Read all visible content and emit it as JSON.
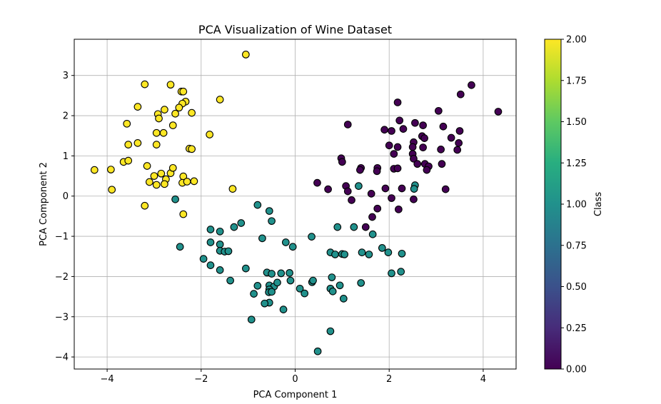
{
  "chart_data": {
    "type": "scatter",
    "title": "PCA Visualization of Wine Dataset",
    "xlabel": "PCA Component 1",
    "ylabel": "PCA Component 2",
    "xlim": [
      -4.7,
      4.7
    ],
    "ylim": [
      -4.3,
      3.9
    ],
    "xticks": [
      -4,
      -2,
      0,
      2,
      4
    ],
    "xtick_labels": [
      "−4",
      "−2",
      "0",
      "2",
      "4"
    ],
    "yticks": [
      -4,
      -3,
      -2,
      -1,
      0,
      1,
      2,
      3
    ],
    "ytick_labels": [
      "−4",
      "−3",
      "−2",
      "−1",
      "0",
      "1",
      "2",
      "3"
    ],
    "grid": true,
    "marker_edge_color": "#000000",
    "colorbar": {
      "label": "Class",
      "colormap": "viridis",
      "range": [
        0,
        2
      ],
      "ticks": [
        0,
        0.25,
        0.5,
        0.75,
        1,
        1.25,
        1.5,
        1.75,
        2
      ],
      "tick_labels": [
        "0.00",
        "0.25",
        "0.50",
        "0.75",
        "1.00",
        "1.25",
        "1.50",
        "1.75",
        "2.00"
      ]
    },
    "class_colors": {
      "0": "#440154",
      "1": "#21918c",
      "2": "#fde725"
    },
    "series": [
      {
        "class": 0,
        "points": [
          [
            3.75,
            2.76
          ],
          [
            4.32,
            2.1
          ],
          [
            3.52,
            2.53
          ],
          [
            3.05,
            2.12
          ],
          [
            2.18,
            2.33
          ],
          [
            1.12,
            1.78
          ],
          [
            2.55,
            1.82
          ],
          [
            2.72,
            1.76
          ],
          [
            2.22,
            1.88
          ],
          [
            2.3,
            1.67
          ],
          [
            1.9,
            1.65
          ],
          [
            2.05,
            1.62
          ],
          [
            2.7,
            1.49
          ],
          [
            2.75,
            1.44
          ],
          [
            3.15,
            1.73
          ],
          [
            3.5,
            1.62
          ],
          [
            3.32,
            1.45
          ],
          [
            3.48,
            1.32
          ],
          [
            3.45,
            1.15
          ],
          [
            3.1,
            1.16
          ],
          [
            2.0,
            1.26
          ],
          [
            2.18,
            1.22
          ],
          [
            2.52,
            1.34
          ],
          [
            2.5,
            1.22
          ],
          [
            2.72,
            1.21
          ],
          [
            2.1,
            1.05
          ],
          [
            2.5,
            1.05
          ],
          [
            2.52,
            0.93
          ],
          [
            2.6,
            0.8
          ],
          [
            2.76,
            0.8
          ],
          [
            2.84,
            0.74
          ],
          [
            2.8,
            0.65
          ],
          [
            3.12,
            0.8
          ],
          [
            0.98,
            0.94
          ],
          [
            1.0,
            0.85
          ],
          [
            1.4,
            0.7
          ],
          [
            1.38,
            0.65
          ],
          [
            1.75,
            0.7
          ],
          [
            1.74,
            0.62
          ],
          [
            2.1,
            0.68
          ],
          [
            2.18,
            0.69
          ],
          [
            0.47,
            0.33
          ],
          [
            0.7,
            0.17
          ],
          [
            1.08,
            0.25
          ],
          [
            1.12,
            0.12
          ],
          [
            1.62,
            0.06
          ],
          [
            1.92,
            0.19
          ],
          [
            2.27,
            0.19
          ],
          [
            2.05,
            -0.05
          ],
          [
            1.2,
            -0.1
          ],
          [
            2.52,
            -0.08
          ],
          [
            1.75,
            -0.31
          ],
          [
            2.2,
            -0.33
          ],
          [
            1.64,
            -0.52
          ],
          [
            1.5,
            -0.77
          ],
          [
            3.2,
            0.17
          ]
        ]
      },
      {
        "class": 1,
        "points": [
          [
            2.55,
            0.27
          ],
          [
            2.53,
            0.18
          ],
          [
            1.35,
            0.25
          ],
          [
            -2.55,
            -0.08
          ],
          [
            -0.8,
            -0.22
          ],
          [
            -0.55,
            -0.37
          ],
          [
            -0.5,
            -0.62
          ],
          [
            -1.15,
            -0.67
          ],
          [
            -1.3,
            -0.77
          ],
          [
            -1.8,
            -0.83
          ],
          [
            -1.6,
            -0.88
          ],
          [
            -0.7,
            -1.05
          ],
          [
            -1.8,
            -1.15
          ],
          [
            -1.6,
            -1.2
          ],
          [
            -2.45,
            -1.26
          ],
          [
            -1.6,
            -1.36
          ],
          [
            -1.5,
            -1.38
          ],
          [
            -1.42,
            -1.37
          ],
          [
            -0.2,
            -1.15
          ],
          [
            -0.05,
            -1.26
          ],
          [
            0.35,
            -1.01
          ],
          [
            0.9,
            -0.77
          ],
          [
            1.25,
            -0.77
          ],
          [
            1.65,
            -0.95
          ],
          [
            1.85,
            -1.29
          ],
          [
            1.98,
            -1.4
          ],
          [
            2.27,
            -1.43
          ],
          [
            0.75,
            -1.4
          ],
          [
            0.85,
            -1.45
          ],
          [
            1.0,
            -1.44
          ],
          [
            1.05,
            -1.45
          ],
          [
            1.42,
            -1.4
          ],
          [
            1.57,
            -1.45
          ],
          [
            -1.95,
            -1.56
          ],
          [
            -1.8,
            -1.72
          ],
          [
            -1.6,
            -1.84
          ],
          [
            -1.05,
            -1.8
          ],
          [
            -0.6,
            -1.9
          ],
          [
            -0.5,
            -1.93
          ],
          [
            -0.3,
            -1.92
          ],
          [
            -0.12,
            -1.91
          ],
          [
            2.25,
            -1.88
          ],
          [
            2.05,
            -1.92
          ],
          [
            -0.8,
            -2.23
          ],
          [
            -0.55,
            -2.22
          ],
          [
            -0.45,
            -2.25
          ],
          [
            -0.38,
            -2.15
          ],
          [
            -0.1,
            -2.1
          ],
          [
            0.1,
            -2.3
          ],
          [
            0.2,
            -2.42
          ],
          [
            0.36,
            -2.14
          ],
          [
            0.38,
            -2.1
          ],
          [
            0.78,
            -2.02
          ],
          [
            0.95,
            -2.22
          ],
          [
            1.4,
            -2.16
          ],
          [
            0.75,
            -2.3
          ],
          [
            0.8,
            -2.37
          ],
          [
            1.03,
            -2.55
          ],
          [
            -0.55,
            -2.32
          ],
          [
            -0.56,
            -2.39
          ],
          [
            -0.5,
            -2.38
          ],
          [
            -0.88,
            -2.43
          ],
          [
            -1.38,
            -2.1
          ],
          [
            -0.55,
            -2.65
          ],
          [
            -0.65,
            -2.67
          ],
          [
            -0.25,
            -2.82
          ],
          [
            -0.93,
            -3.07
          ],
          [
            0.75,
            -3.36
          ],
          [
            0.48,
            -3.86
          ]
        ]
      },
      {
        "class": 2,
        "points": [
          [
            -1.05,
            3.52
          ],
          [
            -3.2,
            2.78
          ],
          [
            -2.65,
            2.77
          ],
          [
            -2.42,
            2.6
          ],
          [
            -2.38,
            2.6
          ],
          [
            -2.33,
            2.35
          ],
          [
            -2.4,
            2.3
          ],
          [
            -2.47,
            2.2
          ],
          [
            -1.6,
            2.4
          ],
          [
            -3.35,
            2.22
          ],
          [
            -2.78,
            2.15
          ],
          [
            -2.55,
            2.05
          ],
          [
            -2.92,
            2.04
          ],
          [
            -2.2,
            2.07
          ],
          [
            -2.9,
            1.93
          ],
          [
            -3.58,
            1.8
          ],
          [
            -2.6,
            1.76
          ],
          [
            -2.95,
            1.57
          ],
          [
            -2.8,
            1.57
          ],
          [
            -1.82,
            1.53
          ],
          [
            -3.35,
            1.32
          ],
          [
            -3.55,
            1.28
          ],
          [
            -2.95,
            1.28
          ],
          [
            -2.25,
            1.18
          ],
          [
            -2.2,
            1.17
          ],
          [
            -3.65,
            0.85
          ],
          [
            -3.55,
            0.88
          ],
          [
            -3.15,
            0.75
          ],
          [
            -4.27,
            0.65
          ],
          [
            -3.92,
            0.66
          ],
          [
            -3.0,
            0.5
          ],
          [
            -2.85,
            0.56
          ],
          [
            -2.75,
            0.42
          ],
          [
            -2.65,
            0.57
          ],
          [
            -2.6,
            0.7
          ],
          [
            -2.38,
            0.49
          ],
          [
            -3.1,
            0.35
          ],
          [
            -2.95,
            0.28
          ],
          [
            -2.78,
            0.3
          ],
          [
            -2.4,
            0.33
          ],
          [
            -2.3,
            0.36
          ],
          [
            -2.15,
            0.37
          ],
          [
            -1.33,
            0.18
          ],
          [
            -3.9,
            0.16
          ],
          [
            -3.2,
            -0.24
          ],
          [
            -2.38,
            -0.45
          ]
        ]
      }
    ]
  }
}
